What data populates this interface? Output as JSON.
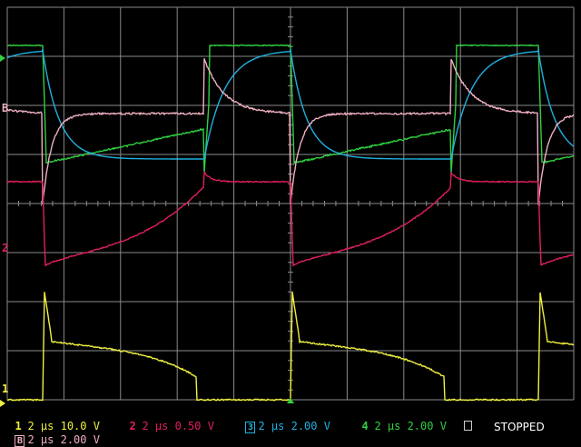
{
  "screen": {
    "background": "#000000",
    "grid_color": "#8a8a8a",
    "state": "STOPPED"
  },
  "channels": [
    {
      "id": "1",
      "timebase": "2 μs",
      "scale": "10.0 V",
      "color": "#f0f040"
    },
    {
      "id": "2",
      "timebase": "2 μs",
      "scale": "0.50 V",
      "color": "#e0205a"
    },
    {
      "id": "3",
      "timebase": "2 μs",
      "scale": "2.00 V",
      "color": "#20b0e0"
    },
    {
      "id": "4",
      "timebase": "2 μs",
      "scale": "2.00 V",
      "color": "#30d040"
    },
    {
      "id": "B",
      "timebase": "2 μs",
      "scale": "2.00 V",
      "color": "#f0b0c0"
    }
  ],
  "markers": {
    "ch1": "1",
    "ch2": "2",
    "chm": "B"
  },
  "icons": {
    "stop": "stop-square-icon",
    "trigger": "trigger-arrow-icon"
  }
}
